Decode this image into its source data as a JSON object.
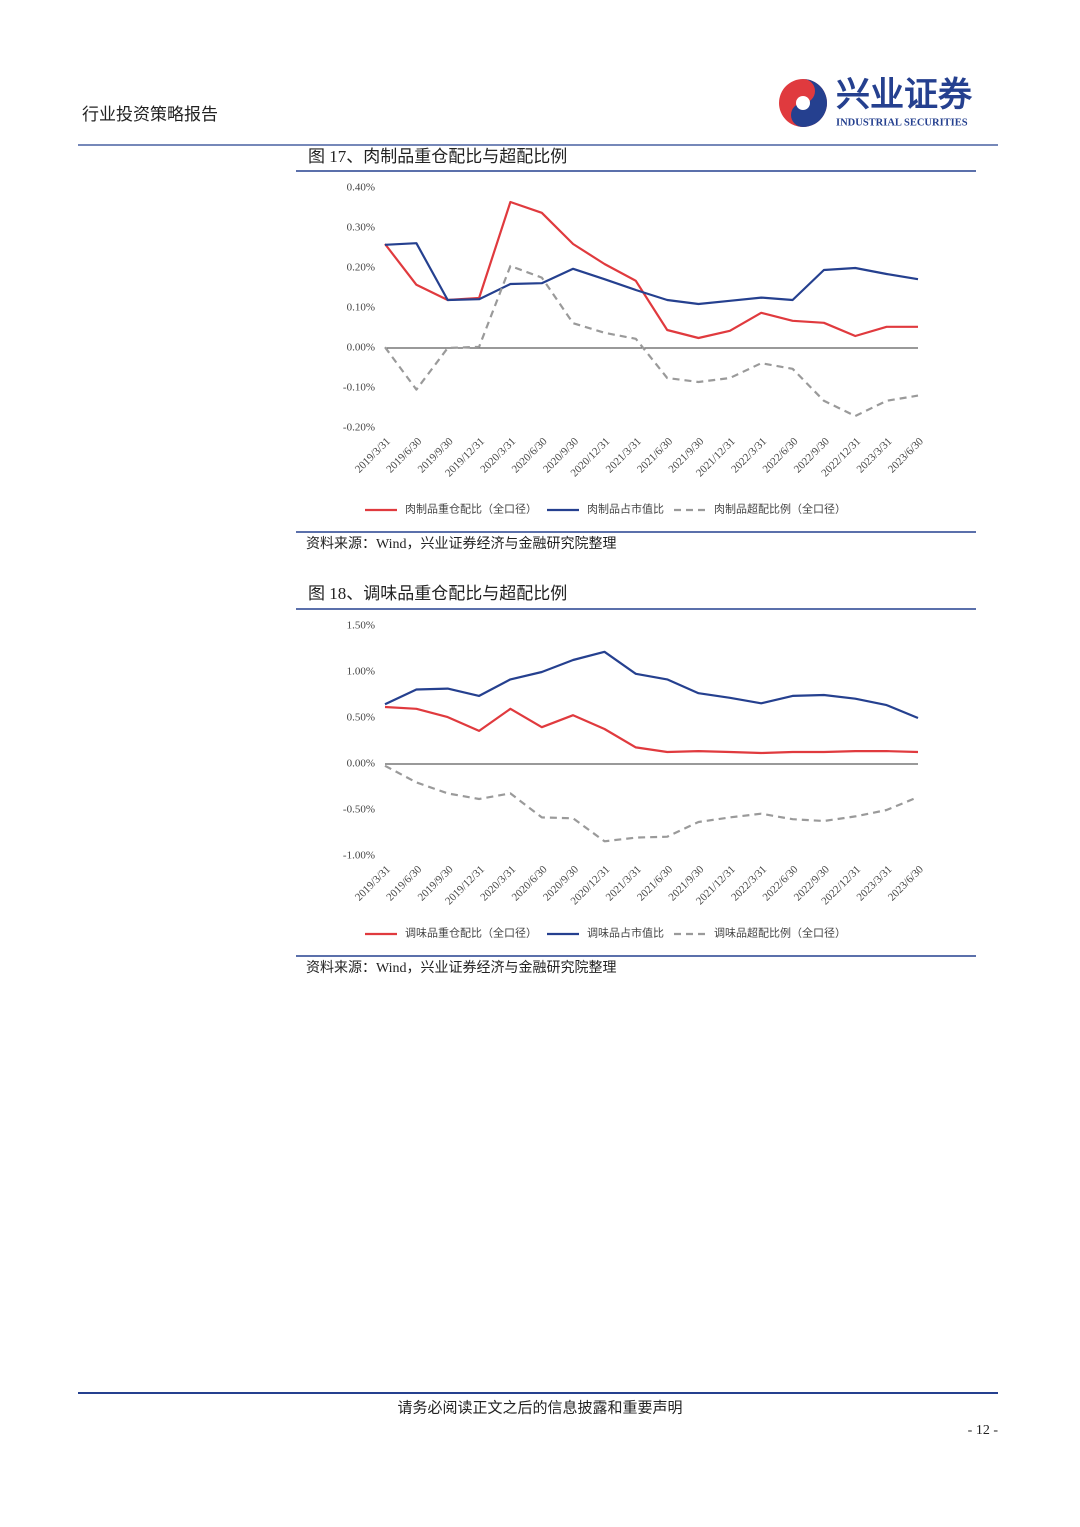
{
  "header": {
    "title": "行业投资策略报告",
    "logo_cn": "兴业证券",
    "logo_en": "INDUSTRIAL SECURITIES"
  },
  "chart_data": [
    {
      "type": "line",
      "title": "图 17、肉制品重仓配比与超配比例",
      "categories": [
        "2019/3/31",
        "2019/6/30",
        "2019/9/30",
        "2019/12/31",
        "2020/3/31",
        "2020/6/30",
        "2020/9/30",
        "2020/12/31",
        "2021/3/31",
        "2021/6/30",
        "2021/9/30",
        "2021/12/31",
        "2022/3/31",
        "2022/6/30",
        "2022/9/30",
        "2022/12/31",
        "2023/3/31",
        "2023/6/30"
      ],
      "series": [
        {
          "name": "肉制品重仓配比（全口径）",
          "color": "#e03a3e",
          "line_style": "solid",
          "values": [
            0.26,
            0.158,
            0.12,
            0.125,
            0.365,
            0.338,
            0.26,
            0.21,
            0.168,
            0.045,
            0.025,
            0.043,
            0.088,
            0.068,
            0.063,
            0.03,
            0.053,
            0.053
          ]
        },
        {
          "name": "肉制品占市值比",
          "color": "#25408f",
          "line_style": "solid",
          "values": [
            0.258,
            0.262,
            0.12,
            0.122,
            0.16,
            0.162,
            0.198,
            0.172,
            0.145,
            0.12,
            0.11,
            0.118,
            0.126,
            0.12,
            0.195,
            0.2,
            0.185,
            0.172
          ]
        },
        {
          "name": "肉制品超配比例（全口径）",
          "color": "#9a9a9a",
          "line_style": "dashed",
          "values": [
            0.002,
            -0.104,
            0,
            0.003,
            0.205,
            0.176,
            0.062,
            0.038,
            0.023,
            -0.075,
            -0.085,
            -0.075,
            -0.038,
            -0.052,
            -0.132,
            -0.17,
            -0.132,
            -0.119
          ]
        }
      ],
      "ylim": [
        -0.2,
        0.4
      ],
      "yticks": [
        {
          "value": -0.2,
          "label": "-0.20%"
        },
        {
          "value": -0.1,
          "label": "-0.10%"
        },
        {
          "value": 0,
          "label": "0.00%"
        },
        {
          "value": 0.1,
          "label": "0.10%"
        },
        {
          "value": 0.2,
          "label": "0.20%"
        },
        {
          "value": 0.3,
          "label": "0.30%"
        },
        {
          "value": 0.4,
          "label": "0.40%"
        }
      ],
      "grid": false,
      "source": "资料来源：Wind，兴业证券经济与金融研究院整理"
    },
    {
      "type": "line",
      "title": "图 18、调味品重仓配比与超配比例",
      "categories": [
        "2019/3/31",
        "2019/6/30",
        "2019/9/30",
        "2019/12/31",
        "2020/3/31",
        "2020/6/30",
        "2020/9/30",
        "2020/12/31",
        "2021/3/31",
        "2021/6/30",
        "2021/9/30",
        "2021/12/31",
        "2022/3/31",
        "2022/6/30",
        "2022/9/30",
        "2022/12/31",
        "2023/3/31",
        "2023/6/30"
      ],
      "series": [
        {
          "name": "调味品重仓配比（全口径）",
          "color": "#e03a3e",
          "line_style": "solid",
          "values": [
            0.62,
            0.6,
            0.51,
            0.36,
            0.6,
            0.4,
            0.53,
            0.38,
            0.18,
            0.13,
            0.14,
            0.13,
            0.12,
            0.13,
            0.13,
            0.14,
            0.14,
            0.13
          ]
        },
        {
          "name": "调味品占市值比",
          "color": "#25408f",
          "line_style": "solid",
          "values": [
            0.65,
            0.81,
            0.82,
            0.74,
            0.92,
            1.0,
            1.13,
            1.22,
            0.98,
            0.92,
            0.77,
            0.72,
            0.66,
            0.74,
            0.75,
            0.71,
            0.64,
            0.5
          ]
        },
        {
          "name": "调味品超配比例（全口径）",
          "color": "#9a9a9a",
          "line_style": "dashed",
          "values": [
            -0.02,
            -0.2,
            -0.32,
            -0.38,
            -0.32,
            -0.58,
            -0.59,
            -0.84,
            -0.8,
            -0.79,
            -0.63,
            -0.58,
            -0.54,
            -0.6,
            -0.62,
            -0.57,
            -0.5,
            -0.36
          ]
        }
      ],
      "ylim": [
        -1.0,
        1.5
      ],
      "yticks": [
        {
          "value": -1.0,
          "label": "-1.00%"
        },
        {
          "value": -0.5,
          "label": "-0.50%"
        },
        {
          "value": 0,
          "label": "0.00%"
        },
        {
          "value": 0.5,
          "label": "0.50%"
        },
        {
          "value": 1.0,
          "label": "1.00%"
        },
        {
          "value": 1.5,
          "label": "1.50%"
        }
      ],
      "grid": false,
      "source": "资料来源：Wind，兴业证券经济与金融研究院整理"
    }
  ],
  "footer": {
    "notice": "请务必阅读正文之后的信息披露和重要声明",
    "page": "- 12 -"
  }
}
